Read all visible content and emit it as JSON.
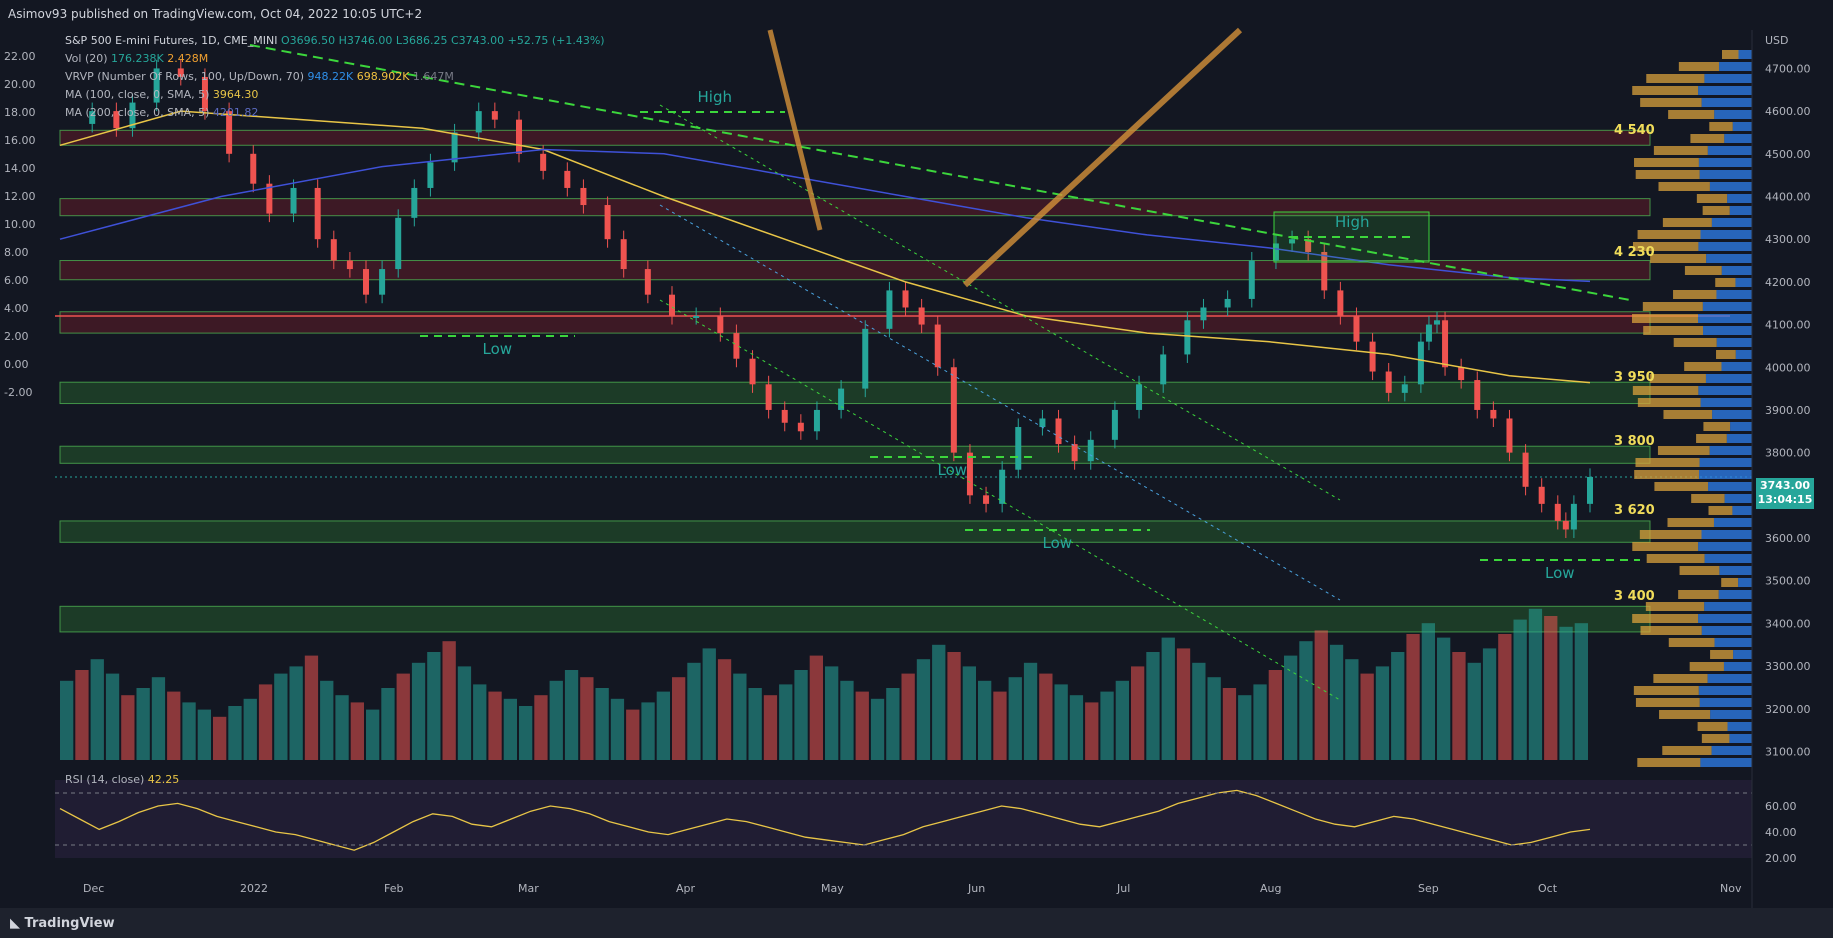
{
  "header": {
    "publisher_line": "Asimov93 published on TradingView.com, Oct 04, 2022 10:05 UTC+2"
  },
  "legend": {
    "symbol_line": "S&P 500 E-mini Futures, 1D, CME_MINI",
    "ohlc": "O3696.50 H3746.00 L3686.25 C3743.00 +52.75 (+1.43%)",
    "vol_label": "Vol (20)",
    "vol_value1": "176.238K",
    "vol_value2": "2.428M",
    "vrvp_label": "VRVP (Number Of Rows, 100, Up/Down, 70)",
    "vrvp_value1": "948.22K",
    "vrvp_value2": "698.902K",
    "vrvp_value3": "1.647M",
    "ma100_label": "MA (100, close, 0, SMA, 5)",
    "ma100_value": "3964.30",
    "ma200_label": "MA (200, close, 0, SMA, 5)",
    "ma200_value": "4201.82",
    "rsi_label": "RSI (14, close)",
    "rsi_value": "42.25"
  },
  "colors": {
    "background": "#131722",
    "up": "#26a69a",
    "down": "#ef5350",
    "ma100": "#e8c547",
    "ma200": "#3f51d8",
    "zone_green": "#2e7d32",
    "zone_red": "#8b1e2a",
    "trend_green": "#3cd63c",
    "level_text": "#f0dc5a"
  },
  "chart_data": {
    "type": "candlestick",
    "title": "S&P 500 E-mini Futures, 1D, CME_MINI",
    "currency": "USD",
    "price_axis": {
      "ticks": [
        "4700.00",
        "4600.00",
        "4500.00",
        "4400.00",
        "4300.00",
        "4200.00",
        "4100.00",
        "4000.00",
        "3900.00",
        "3800.00",
        "3700.00",
        "3600.00",
        "3500.00",
        "3400.00",
        "3300.00",
        "3200.00",
        "3100.00"
      ],
      "range": [
        3080,
        4790
      ]
    },
    "left_axis": {
      "ticks": [
        "22.00",
        "20.00",
        "18.00",
        "16.00",
        "14.00",
        "12.00",
        "10.00",
        "8.00",
        "6.00",
        "4.00",
        "2.00",
        "0.00",
        "-2.00"
      ]
    },
    "rsi_axis": {
      "ticks": [
        "60.00",
        "40.00",
        "20.00"
      ],
      "levels": [
        70,
        30
      ]
    },
    "time_axis": {
      "labels": [
        "Dec",
        "2022",
        "Feb",
        "Mar",
        "Apr",
        "May",
        "Jun",
        "Jul",
        "Aug",
        "Sep",
        "Oct",
        "Nov"
      ]
    },
    "last_price": "3743.00",
    "countdown": "13:04:15",
    "levels": [
      "4 540",
      "4 230",
      "3 950",
      "3 800",
      "3 620",
      "3 400"
    ],
    "annotations": [
      "High",
      "Low",
      "High",
      "Low",
      "Low",
      "Low"
    ],
    "price_path": [
      [
        0,
        4570
      ],
      [
        8,
        4600
      ],
      [
        14,
        4560
      ],
      [
        18,
        4620
      ],
      [
        24,
        4700
      ],
      [
        30,
        4680
      ],
      [
        36,
        4600
      ],
      [
        42,
        4500
      ],
      [
        48,
        4430
      ],
      [
        52,
        4360
      ],
      [
        58,
        4420
      ],
      [
        64,
        4300
      ],
      [
        68,
        4250
      ],
      [
        72,
        4230
      ],
      [
        76,
        4170
      ],
      [
        80,
        4230
      ],
      [
        84,
        4350
      ],
      [
        88,
        4420
      ],
      [
        92,
        4480
      ],
      [
        98,
        4550
      ],
      [
        104,
        4600
      ],
      [
        108,
        4580
      ],
      [
        114,
        4500
      ],
      [
        120,
        4460
      ],
      [
        126,
        4420
      ],
      [
        130,
        4380
      ],
      [
        136,
        4300
      ],
      [
        140,
        4230
      ],
      [
        146,
        4170
      ],
      [
        152,
        4120
      ],
      [
        158,
        4120
      ],
      [
        164,
        4080
      ],
      [
        168,
        4020
      ],
      [
        172,
        3960
      ],
      [
        176,
        3900
      ],
      [
        180,
        3870
      ],
      [
        184,
        3850
      ],
      [
        188,
        3900
      ],
      [
        194,
        3950
      ],
      [
        200,
        4090
      ],
      [
        206,
        4180
      ],
      [
        210,
        4140
      ],
      [
        214,
        4100
      ],
      [
        218,
        4000
      ],
      [
        222,
        3800
      ],
      [
        226,
        3700
      ],
      [
        230,
        3680
      ],
      [
        234,
        3760
      ],
      [
        238,
        3860
      ],
      [
        244,
        3880
      ],
      [
        248,
        3820
      ],
      [
        252,
        3780
      ],
      [
        256,
        3830
      ],
      [
        262,
        3900
      ],
      [
        268,
        3960
      ],
      [
        274,
        4030
      ],
      [
        280,
        4110
      ],
      [
        284,
        4140
      ],
      [
        290,
        4160
      ],
      [
        296,
        4250
      ],
      [
        302,
        4290
      ],
      [
        306,
        4300
      ],
      [
        310,
        4270
      ],
      [
        314,
        4180
      ],
      [
        318,
        4120
      ],
      [
        322,
        4060
      ],
      [
        326,
        3990
      ],
      [
        330,
        3940
      ],
      [
        334,
        3960
      ],
      [
        338,
        4060
      ],
      [
        340,
        4100
      ],
      [
        342,
        4110
      ],
      [
        344,
        4000
      ],
      [
        348,
        3970
      ],
      [
        352,
        3900
      ],
      [
        356,
        3880
      ],
      [
        360,
        3800
      ],
      [
        364,
        3720
      ],
      [
        368,
        3680
      ],
      [
        372,
        3640
      ],
      [
        374,
        3620
      ],
      [
        376,
        3680
      ],
      [
        380,
        3743
      ]
    ],
    "ma100_path": [
      [
        0,
        4520
      ],
      [
        30,
        4600
      ],
      [
        60,
        4580
      ],
      [
        90,
        4560
      ],
      [
        120,
        4510
      ],
      [
        150,
        4400
      ],
      [
        180,
        4300
      ],
      [
        210,
        4200
      ],
      [
        240,
        4120
      ],
      [
        270,
        4080
      ],
      [
        300,
        4060
      ],
      [
        330,
        4030
      ],
      [
        360,
        3980
      ],
      [
        380,
        3964
      ]
    ],
    "ma200_path": [
      [
        0,
        4300
      ],
      [
        40,
        4400
      ],
      [
        80,
        4470
      ],
      [
        120,
        4510
      ],
      [
        150,
        4500
      ],
      [
        180,
        4450
      ],
      [
        210,
        4400
      ],
      [
        240,
        4350
      ],
      [
        270,
        4310
      ],
      [
        300,
        4280
      ],
      [
        330,
        4240
      ],
      [
        360,
        4210
      ],
      [
        380,
        4201
      ]
    ],
    "volume_bars": [
      22,
      25,
      28,
      24,
      18,
      20,
      23,
      19,
      16,
      14,
      12,
      15,
      17,
      21,
      24,
      26,
      29,
      22,
      18,
      16,
      14,
      20,
      24,
      27,
      30,
      33,
      26,
      21,
      19,
      17,
      15,
      18,
      22,
      25,
      23,
      20,
      17,
      14,
      16,
      19,
      23,
      27,
      31,
      28,
      24,
      20,
      18,
      21,
      25,
      29,
      26,
      22,
      19,
      17,
      20,
      24,
      28,
      32,
      30,
      26,
      22,
      19,
      23,
      27,
      24,
      21,
      18,
      16,
      19,
      22,
      26,
      30,
      34,
      31,
      27,
      23,
      20,
      18,
      21,
      25,
      29,
      33,
      36,
      32,
      28,
      24,
      26,
      30,
      35,
      38,
      34,
      30,
      27,
      31,
      35,
      39,
      42,
      40,
      37,
      38
    ],
    "rsi_values": [
      58,
      50,
      42,
      48,
      55,
      60,
      62,
      58,
      52,
      48,
      44,
      40,
      38,
      34,
      30,
      26,
      32,
      40,
      48,
      54,
      52,
      46,
      44,
      50,
      56,
      60,
      58,
      54,
      48,
      44,
      40,
      38,
      42,
      46,
      50,
      48,
      44,
      40,
      36,
      34,
      32,
      30,
      34,
      38,
      44,
      48,
      52,
      56,
      60,
      58,
      54,
      50,
      46,
      44,
      48,
      52,
      56,
      62,
      66,
      70,
      72,
      68,
      62,
      56,
      50,
      46,
      44,
      48,
      52,
      50,
      46,
      42,
      38,
      34,
      30,
      32,
      36,
      40,
      42
    ]
  }
}
